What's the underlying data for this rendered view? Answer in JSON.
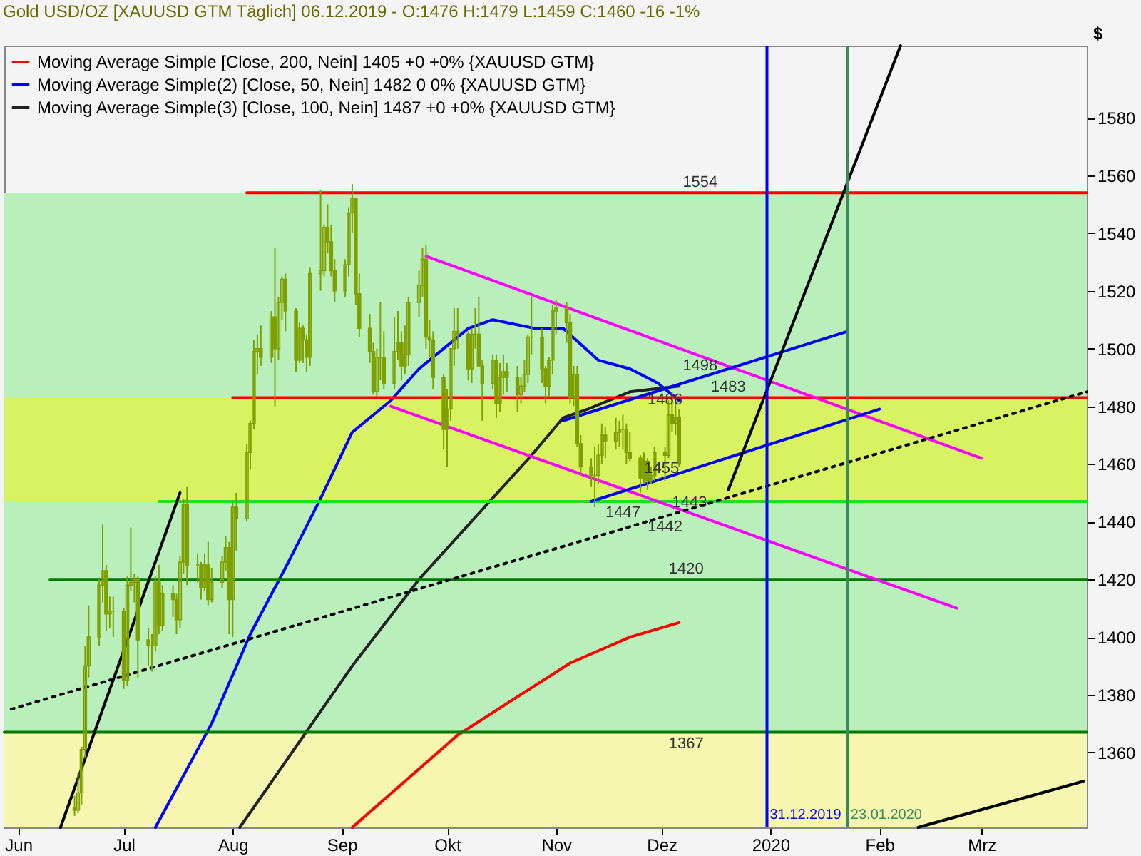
{
  "chart_data": {
    "type": "candlestick",
    "title": "Gold USD/OZ [XAUUSD GTM  Täglich] 06.12.2019 - O:1476 H:1479 L:1459 C:1460 -16 -1%",
    "ylabel": "$",
    "color": "#7f9f00",
    "x": [
      "2019-06-17",
      "2019-06-18",
      "2019-06-19",
      "2019-06-20",
      "2019-06-21",
      "2019-06-24",
      "2019-06-25",
      "2019-06-26",
      "2019-06-27",
      "2019-06-28",
      "2019-07-01",
      "2019-07-02",
      "2019-07-03",
      "2019-07-04",
      "2019-07-05",
      "2019-07-08",
      "2019-07-09",
      "2019-07-10",
      "2019-07-11",
      "2019-07-12",
      "2019-07-15",
      "2019-07-16",
      "2019-07-17",
      "2019-07-18",
      "2019-07-19",
      "2019-07-22",
      "2019-07-23",
      "2019-07-24",
      "2019-07-25",
      "2019-07-26",
      "2019-07-29",
      "2019-07-30",
      "2019-07-31",
      "2019-08-01",
      "2019-08-02",
      "2019-08-05",
      "2019-08-06",
      "2019-08-07",
      "2019-08-08",
      "2019-08-09",
      "2019-08-12",
      "2019-08-13",
      "2019-08-14",
      "2019-08-15",
      "2019-08-16",
      "2019-08-19",
      "2019-08-20",
      "2019-08-21",
      "2019-08-22",
      "2019-08-23",
      "2019-08-26",
      "2019-08-27",
      "2019-08-28",
      "2019-08-29",
      "2019-08-30",
      "2019-09-02",
      "2019-09-03",
      "2019-09-04",
      "2019-09-05",
      "2019-09-06",
      "2019-09-09",
      "2019-09-10",
      "2019-09-11",
      "2019-09-12",
      "2019-09-13",
      "2019-09-16",
      "2019-09-17",
      "2019-09-18",
      "2019-09-19",
      "2019-09-20",
      "2019-09-23",
      "2019-09-24",
      "2019-09-25",
      "2019-09-26",
      "2019-09-27",
      "2019-09-30",
      "2019-10-01",
      "2019-10-02",
      "2019-10-03",
      "2019-10-04",
      "2019-10-07",
      "2019-10-08",
      "2019-10-09",
      "2019-10-10",
      "2019-10-11",
      "2019-10-14",
      "2019-10-15",
      "2019-10-16",
      "2019-10-17",
      "2019-10-18",
      "2019-10-21",
      "2019-10-22",
      "2019-10-23",
      "2019-10-24",
      "2019-10-25",
      "2019-10-28",
      "2019-10-29",
      "2019-10-30",
      "2019-10-31",
      "2019-11-01",
      "2019-11-04",
      "2019-11-05",
      "2019-11-06",
      "2019-11-07",
      "2019-11-08",
      "2019-11-11",
      "2019-11-12",
      "2019-11-13",
      "2019-11-14",
      "2019-11-15",
      "2019-11-18",
      "2019-11-19",
      "2019-11-20",
      "2019-11-21",
      "2019-11-22",
      "2019-11-25",
      "2019-11-26",
      "2019-11-27",
      "2019-11-28",
      "2019-11-29",
      "2019-12-02",
      "2019-12-03",
      "2019-12-04",
      "2019-12-05",
      "2019-12-06"
    ],
    "ohlc": [
      [
        1341,
        1345,
        1338,
        1340
      ],
      [
        1340,
        1353,
        1339,
        1346
      ],
      [
        1346,
        1362,
        1342,
        1361
      ],
      [
        1361,
        1397,
        1358,
        1390
      ],
      [
        1390,
        1411,
        1386,
        1400
      ],
      [
        1400,
        1420,
        1397,
        1418
      ],
      [
        1418,
        1439,
        1412,
        1423
      ],
      [
        1423,
        1425,
        1402,
        1408
      ],
      [
        1408,
        1414,
        1403,
        1409
      ],
      [
        1409,
        1414,
        1400,
        1409
      ],
      [
        1409,
        1410,
        1382,
        1385
      ],
      [
        1385,
        1421,
        1383,
        1418
      ],
      [
        1418,
        1438,
        1416,
        1419
      ],
      [
        1419,
        1422,
        1412,
        1420
      ],
      [
        1420,
        1421,
        1386,
        1399
      ],
      [
        1399,
        1403,
        1390,
        1397
      ],
      [
        1397,
        1401,
        1388,
        1397
      ],
      [
        1397,
        1421,
        1395,
        1419
      ],
      [
        1419,
        1425,
        1401,
        1404
      ],
      [
        1404,
        1418,
        1402,
        1415
      ],
      [
        1415,
        1418,
        1407,
        1413
      ],
      [
        1413,
        1415,
        1401,
        1406
      ],
      [
        1406,
        1428,
        1403,
        1426
      ],
      [
        1426,
        1448,
        1422,
        1446
      ],
      [
        1446,
        1452,
        1418,
        1425
      ],
      [
        1425,
        1429,
        1419,
        1425
      ],
      [
        1425,
        1426,
        1413,
        1417
      ],
      [
        1417,
        1429,
        1416,
        1425
      ],
      [
        1425,
        1433,
        1411,
        1413
      ],
      [
        1413,
        1424,
        1412,
        1419
      ],
      [
        1419,
        1428,
        1417,
        1426
      ],
      [
        1426,
        1435,
        1423,
        1431
      ],
      [
        1431,
        1433,
        1401,
        1413
      ],
      [
        1413,
        1447,
        1400,
        1445
      ],
      [
        1445,
        1450,
        1430,
        1441
      ],
      [
        1441,
        1467,
        1440,
        1464
      ],
      [
        1464,
        1475,
        1458,
        1474
      ],
      [
        1474,
        1503,
        1472,
        1499
      ],
      [
        1499,
        1505,
        1491,
        1500
      ],
      [
        1500,
        1508,
        1494,
        1497
      ],
      [
        1497,
        1513,
        1495,
        1511
      ],
      [
        1511,
        1535,
        1480,
        1500
      ],
      [
        1500,
        1518,
        1496,
        1516
      ],
      [
        1516,
        1525,
        1510,
        1524
      ],
      [
        1524,
        1526,
        1506,
        1513
      ],
      [
        1513,
        1514,
        1492,
        1496
      ],
      [
        1496,
        1509,
        1495,
        1507
      ],
      [
        1507,
        1508,
        1495,
        1503
      ],
      [
        1503,
        1505,
        1492,
        1497
      ],
      [
        1497,
        1528,
        1494,
        1526
      ],
      [
        1526,
        1555,
        1520,
        1527
      ],
      [
        1527,
        1543,
        1525,
        1542
      ],
      [
        1542,
        1550,
        1533,
        1537
      ],
      [
        1537,
        1543,
        1525,
        1527
      ],
      [
        1527,
        1531,
        1516,
        1520
      ],
      [
        1520,
        1531,
        1518,
        1529
      ],
      [
        1529,
        1549,
        1525,
        1547
      ],
      [
        1547,
        1557,
        1540,
        1552
      ],
      [
        1552,
        1552,
        1515,
        1519
      ],
      [
        1519,
        1526,
        1504,
        1507
      ],
      [
        1507,
        1512,
        1495,
        1499
      ],
      [
        1499,
        1502,
        1484,
        1485
      ],
      [
        1485,
        1500,
        1483,
        1497
      ],
      [
        1497,
        1516,
        1489,
        1497
      ],
      [
        1497,
        1506,
        1486,
        1488
      ],
      [
        1488,
        1511,
        1486,
        1499
      ],
      [
        1499,
        1513,
        1496,
        1502
      ],
      [
        1502,
        1506,
        1489,
        1494
      ],
      [
        1494,
        1508,
        1491,
        1498
      ],
      [
        1498,
        1518,
        1494,
        1516
      ],
      [
        1516,
        1527,
        1511,
        1522
      ],
      [
        1522,
        1535,
        1518,
        1531
      ],
      [
        1531,
        1536,
        1500,
        1504
      ],
      [
        1504,
        1510,
        1497,
        1503
      ],
      [
        1503,
        1506,
        1486,
        1490
      ],
      [
        1490,
        1491,
        1465,
        1472
      ],
      [
        1472,
        1486,
        1459,
        1479
      ],
      [
        1479,
        1500,
        1475,
        1500
      ],
      [
        1500,
        1514,
        1494,
        1506
      ],
      [
        1506,
        1514,
        1500,
        1505
      ],
      [
        1505,
        1506,
        1489,
        1493
      ],
      [
        1493,
        1507,
        1488,
        1505
      ],
      [
        1505,
        1514,
        1500,
        1505
      ],
      [
        1505,
        1518,
        1494,
        1494
      ],
      [
        1494,
        1496,
        1475,
        1488
      ],
      [
        1488,
        1498,
        1486,
        1496
      ],
      [
        1496,
        1498,
        1476,
        1481
      ],
      [
        1481,
        1495,
        1478,
        1490
      ],
      [
        1490,
        1498,
        1484,
        1492
      ],
      [
        1492,
        1495,
        1485,
        1490
      ],
      [
        1490,
        1494,
        1478,
        1484
      ],
      [
        1484,
        1490,
        1481,
        1487
      ],
      [
        1487,
        1496,
        1485,
        1491
      ],
      [
        1491,
        1505,
        1488,
        1504
      ],
      [
        1504,
        1518,
        1498,
        1504
      ],
      [
        1504,
        1507,
        1488,
        1493
      ],
      [
        1493,
        1494,
        1481,
        1487
      ],
      [
        1487,
        1497,
        1483,
        1496
      ],
      [
        1496,
        1515,
        1491,
        1513
      ],
      [
        1513,
        1517,
        1505,
        1514
      ],
      [
        1514,
        1516,
        1502,
        1509
      ],
      [
        1509,
        1512,
        1481,
        1483
      ],
      [
        1483,
        1494,
        1480,
        1491
      ],
      [
        1491,
        1494,
        1466,
        1467
      ],
      [
        1467,
        1470,
        1456,
        1459
      ],
      [
        1459,
        1462,
        1452,
        1456
      ],
      [
        1456,
        1466,
        1445,
        1456
      ],
      [
        1456,
        1467,
        1453,
        1463
      ],
      [
        1463,
        1474,
        1460,
        1470
      ],
      [
        1470,
        1473,
        1462,
        1468
      ],
      [
        1468,
        1476,
        1465,
        1471
      ],
      [
        1471,
        1475,
        1466,
        1472
      ],
      [
        1472,
        1477,
        1465,
        1472
      ],
      [
        1472,
        1474,
        1460,
        1464
      ],
      [
        1464,
        1471,
        1461,
        1462
      ],
      [
        1462,
        1463,
        1450,
        1455
      ],
      [
        1455,
        1464,
        1453,
        1461
      ],
      [
        1461,
        1462,
        1451,
        1454
      ],
      [
        1454,
        1459,
        1453,
        1456
      ],
      [
        1456,
        1466,
        1454,
        1464
      ],
      [
        1464,
        1466,
        1454,
        1463
      ],
      [
        1463,
        1482,
        1462,
        1477
      ],
      [
        1477,
        1485,
        1471,
        1474
      ],
      [
        1474,
        1483,
        1470,
        1476
      ],
      [
        1476,
        1479,
        1459,
        1460
      ]
    ],
    "series": [
      {
        "type": "line",
        "name": "Moving Average Simple [Close, 200, Nein] 1405 +0 +0% {XAUUSD GTM}",
        "color": "#ff0000",
        "x": [
          "2019-09-04",
          "2019-10-04",
          "2019-11-05",
          "2019-11-22",
          "2019-12-06"
        ],
        "values": [
          1334,
          1366,
          1391,
          1400,
          1405
        ]
      },
      {
        "type": "line",
        "name": "Moving Average Simple(2) [Close, 50, Nein] 1482 0 0% {XAUUSD GTM}",
        "color": "#0000ff",
        "x": [
          "2019-07-10",
          "2019-07-26",
          "2019-08-06",
          "2019-08-16",
          "2019-08-26",
          "2019-09-04",
          "2019-09-15",
          "2019-09-23",
          "2019-10-07",
          "2019-10-14",
          "2019-10-26",
          "2019-11-03",
          "2019-11-13",
          "2019-11-22",
          "2019-11-30",
          "2019-12-06"
        ],
        "values": [
          1334,
          1370,
          1401,
          1424,
          1448,
          1471,
          1482,
          1493,
          1507,
          1510,
          1507,
          1507,
          1496,
          1493,
          1488,
          1482
        ]
      },
      {
        "type": "line",
        "name": "Moving Average Simple(3) [Close, 100, Nein] 1487 +0 +0% {XAUUSD GTM}",
        "color": "#222222",
        "x": [
          "2019-08-03",
          "2019-09-04",
          "2019-09-23",
          "2019-10-25",
          "2019-11-03",
          "2019-11-10",
          "2019-11-22",
          "2019-12-06"
        ],
        "values": [
          1334,
          1390,
          1420,
          1463,
          1476,
          1479,
          1485,
          1487
        ]
      },
      {
        "type": "line",
        "color": "#ff0000",
        "x": [
          "2019-08-05",
          "2020-03-31"
        ],
        "values": [
          1554,
          1554
        ]
      },
      {
        "type": "line",
        "color": "#ff0000",
        "x": [
          "2019-08-01",
          "2020-03-31"
        ],
        "values": [
          1483,
          1483
        ]
      },
      {
        "type": "line",
        "color": "#22dd22",
        "x": [
          "2019-07-11",
          "2020-03-31"
        ],
        "values": [
          1447,
          1447
        ]
      },
      {
        "type": "line",
        "color": "#007a00",
        "x": [
          "2019-06-10",
          "2020-03-31"
        ],
        "values": [
          1420,
          1420
        ]
      },
      {
        "type": "line",
        "color": "#007a00",
        "x": [
          "2019-05-28",
          "2020-03-31"
        ],
        "values": [
          1367,
          1367
        ]
      },
      {
        "type": "line",
        "color": "#ff00ff",
        "x": [
          "2019-09-25",
          "2020-03-01"
        ],
        "values": [
          1532,
          1462
        ]
      },
      {
        "type": "line",
        "color": "#ff00ff",
        "x": [
          "2019-09-15",
          "2020-02-23"
        ],
        "values": [
          1480,
          1410
        ]
      },
      {
        "type": "line",
        "color": "#0000ff",
        "x": [
          "2019-11-03",
          "2020-01-23"
        ],
        "values": [
          1475,
          1506
        ]
      },
      {
        "type": "line",
        "color": "#0000ff",
        "x": [
          "2019-11-11",
          "2020-02-01"
        ],
        "values": [
          1447,
          1479
        ]
      },
      {
        "type": "line",
        "color": "#000000",
        "line_style": "dotted",
        "x": [
          "2019-05-30",
          "2020-03-31"
        ],
        "values": [
          1375,
          1485
        ]
      },
      {
        "type": "line",
        "color": "#000000",
        "x": [
          "2019-06-13",
          "2019-07-17"
        ],
        "values": [
          1334,
          1450
        ]
      },
      {
        "type": "line",
        "color": "#000000",
        "x": [
          "2019-12-20",
          "2020-02-07"
        ],
        "values": [
          1451,
          1605
        ]
      },
      {
        "type": "line",
        "color": "#000000",
        "x": [
          "2020-02-12",
          "2020-03-30"
        ],
        "values": [
          1334,
          1350
        ]
      }
    ],
    "bands": [
      {
        "axis": "y",
        "from": 1367,
        "to": 1554,
        "color": "#b9efbb"
      },
      {
        "axis": "y",
        "from": 1447,
        "to": 1483,
        "color": "#d9f262"
      },
      {
        "axis": "y",
        "from": 1334,
        "to": 1367,
        "color": "#f6f6b0"
      }
    ],
    "ref_lines": [
      {
        "axis": "x",
        "value": "2019-12-31",
        "label": "31.12.2019",
        "color": "#0000ff"
      },
      {
        "axis": "x",
        "value": "2020-01-23",
        "label": "23.01.2020",
        "color": "#3a8a5a"
      }
    ],
    "annotations": [
      {
        "text": "1554",
        "x": "2019-12-12",
        "y": 1554
      },
      {
        "text": "1498",
        "x": "2019-12-12",
        "y": 1498
      },
      {
        "text": "1483",
        "x": "2019-12-20",
        "y": 1483
      },
      {
        "text": "1486",
        "x": "2019-12-02",
        "y": 1486
      },
      {
        "text": "1455",
        "x": "2019-12-01",
        "y": 1455
      },
      {
        "text": "1447",
        "x": "2019-11-20",
        "y": 1447
      },
      {
        "text": "1443",
        "x": "2019-12-09",
        "y": 1443
      },
      {
        "text": "1442",
        "x": "2019-12-02",
        "y": 1442
      },
      {
        "text": "1420",
        "x": "2019-12-08",
        "y": 1420
      },
      {
        "text": "1367",
        "x": "2019-12-08",
        "y": 1367
      }
    ],
    "xlim": [
      "2019-05-28",
      "2020-03-31"
    ],
    "xticks": [
      {
        "value": "2019-06-01",
        "label": "Jun"
      },
      {
        "value": "2019-07-01",
        "label": "Jul"
      },
      {
        "value": "2019-08-01",
        "label": "Aug"
      },
      {
        "value": "2019-09-01",
        "label": "Sep"
      },
      {
        "value": "2019-10-01",
        "label": "Okt"
      },
      {
        "value": "2019-11-01",
        "label": "Nov"
      },
      {
        "value": "2019-12-01",
        "label": "Dez"
      },
      {
        "value": "2020-01-01",
        "label": "2020"
      },
      {
        "value": "2020-02-01",
        "label": "Feb"
      },
      {
        "value": "2020-03-01",
        "label": "Mrz"
      }
    ],
    "ylim": [
      1334,
      1605
    ],
    "yticks": [
      1360,
      1380,
      1400,
      1420,
      1440,
      1460,
      1480,
      1500,
      1520,
      1540,
      1560,
      1580
    ],
    "grid": false,
    "legend": "top left"
  }
}
